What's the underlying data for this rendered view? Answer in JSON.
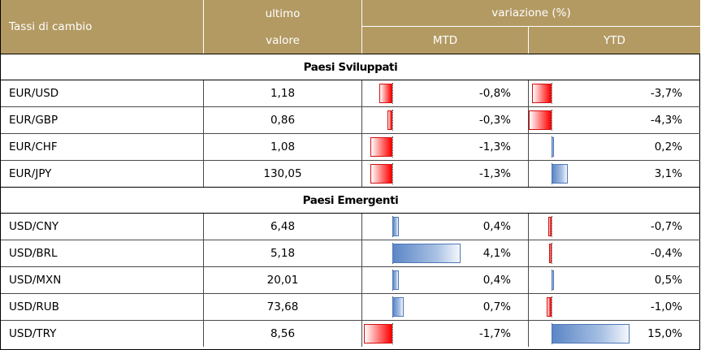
{
  "header": {
    "title": "Tassi di cambio",
    "last_line1": "ultimo",
    "last_line2": "valore",
    "variation": "variazione (%)",
    "mtd": "MTD",
    "ytd": "YTD"
  },
  "colors": {
    "header_bg": "#b39a63",
    "negative_bar": "#ff0000",
    "positive_bar": "#5b86c6"
  },
  "sections": [
    {
      "title": "Paesi Sviluppati",
      "rows": [
        {
          "pair": "EUR/USD",
          "value": "1,18",
          "mtd": "-0,8%",
          "ytd": "-3,7%",
          "mtd_num": -0.8,
          "ytd_num": -3.7
        },
        {
          "pair": "EUR/GBP",
          "value": "0,86",
          "mtd": "-0,3%",
          "ytd": "-4,3%",
          "mtd_num": -0.3,
          "ytd_num": -4.3
        },
        {
          "pair": "EUR/CHF",
          "value": "1,08",
          "mtd": "-1,3%",
          "ytd": "0,2%",
          "mtd_num": -1.3,
          "ytd_num": 0.2
        },
        {
          "pair": "EUR/JPY",
          "value": "130,05",
          "mtd": "-1,3%",
          "ytd": "3,1%",
          "mtd_num": -1.3,
          "ytd_num": 3.1
        }
      ]
    },
    {
      "title": "Paesi Emergenti",
      "rows": [
        {
          "pair": "USD/CNY",
          "value": "6,48",
          "mtd": "0,4%",
          "ytd": "-0,7%",
          "mtd_num": 0.4,
          "ytd_num": -0.7
        },
        {
          "pair": "USD/BRL",
          "value": "5,18",
          "mtd": "4,1%",
          "ytd": "-0,4%",
          "mtd_num": 4.1,
          "ytd_num": -0.4
        },
        {
          "pair": "USD/MXN",
          "value": "20,01",
          "mtd": "0,4%",
          "ytd": "0,5%",
          "mtd_num": 0.4,
          "ytd_num": 0.5
        },
        {
          "pair": "USD/RUB",
          "value": "73,68",
          "mtd": "0,7%",
          "ytd": "-1,0%",
          "mtd_num": 0.7,
          "ytd_num": -1.0
        },
        {
          "pair": "USD/TRY",
          "value": "8,56",
          "mtd": "-1,7%",
          "ytd": "15,0%",
          "mtd_num": -1.7,
          "ytd_num": 15.0
        }
      ]
    }
  ]
}
